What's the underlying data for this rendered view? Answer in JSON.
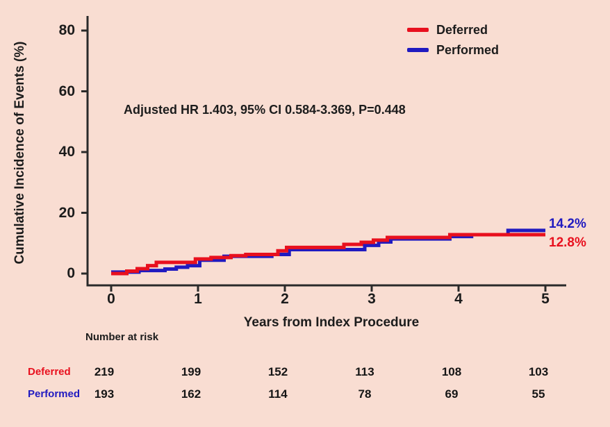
{
  "figure": {
    "background": "#f9ddd2",
    "axis_color": "#2a2a2a"
  },
  "chart_data": {
    "type": "line",
    "subtype": "kaplan-meier-step",
    "title": "",
    "xlabel": "Years from Index Procedure",
    "ylabel": "Cumulative Incidence of Events (%)",
    "annotation": "Adjusted HR 1.403, 95% CI 0.584-3.369, P=0.448",
    "xlim": [
      0,
      5.2
    ],
    "ylim": [
      0,
      85
    ],
    "xticks": [
      "0",
      "1",
      "2",
      "3",
      "4",
      "5"
    ],
    "yticks": [
      "0",
      "20",
      "40",
      "60",
      "80"
    ],
    "grid": false,
    "legend_position": "top-right",
    "x_end": 5.0,
    "series": [
      {
        "name": "Deferred",
        "color": "#e8101e",
        "end_label": "12.8%",
        "final_value_pct": 12.8,
        "steps": [
          [
            0,
            0
          ],
          [
            0.18,
            0.8
          ],
          [
            0.3,
            1.6
          ],
          [
            0.42,
            2.6
          ],
          [
            0.52,
            3.7
          ],
          [
            0.97,
            4.8
          ],
          [
            1.15,
            5.3
          ],
          [
            1.38,
            5.9
          ],
          [
            1.55,
            6.3
          ],
          [
            1.92,
            7.5
          ],
          [
            2.02,
            8.6
          ],
          [
            2.68,
            9.6
          ],
          [
            2.88,
            10.3
          ],
          [
            3.02,
            11.0
          ],
          [
            3.18,
            11.9
          ],
          [
            3.9,
            12.8
          ]
        ]
      },
      {
        "name": "Performed",
        "color": "#201ac0",
        "end_label": "14.2%",
        "final_value_pct": 14.2,
        "steps": [
          [
            0,
            0.5
          ],
          [
            0.32,
            1.0
          ],
          [
            0.62,
            1.5
          ],
          [
            0.75,
            2.1
          ],
          [
            0.88,
            2.6
          ],
          [
            1.02,
            4.4
          ],
          [
            1.3,
            5.7
          ],
          [
            1.85,
            6.3
          ],
          [
            2.05,
            7.9
          ],
          [
            2.92,
            9.3
          ],
          [
            3.08,
            10.4
          ],
          [
            3.22,
            11.4
          ],
          [
            3.9,
            12.2
          ],
          [
            4.15,
            12.8
          ],
          [
            4.57,
            14.2
          ]
        ]
      }
    ]
  },
  "risk_table": {
    "header": "Number at risk",
    "time_points": [
      "0",
      "1",
      "2",
      "3",
      "4",
      "5"
    ],
    "rows": [
      {
        "label": "Deferred",
        "color": "#e8101e",
        "values": [
          219,
          199,
          152,
          113,
          108,
          103
        ]
      },
      {
        "label": "Performed",
        "color": "#201ac0",
        "values": [
          193,
          162,
          114,
          78,
          69,
          55
        ]
      }
    ]
  }
}
